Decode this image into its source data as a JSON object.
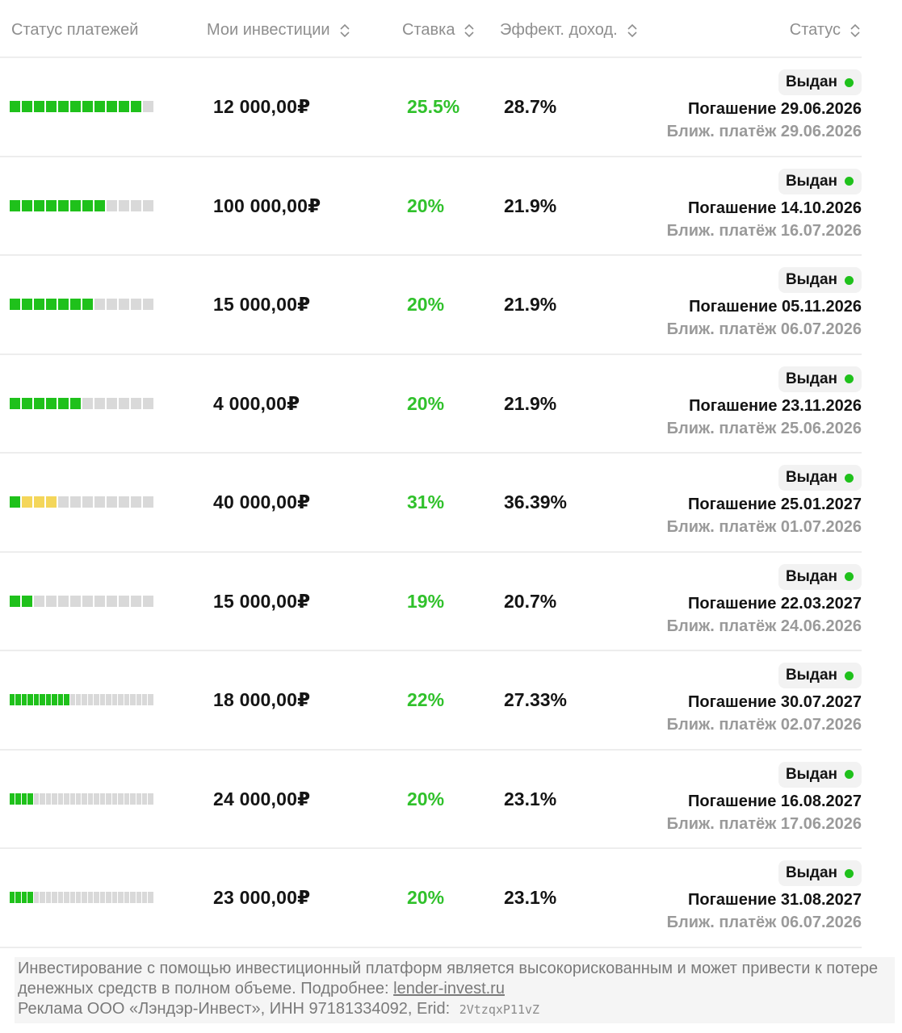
{
  "header": {
    "payment_status": "Статус платежей",
    "my_investments": "Мои инвестиции",
    "rate": "Ставка",
    "effective_yield": "Эффект. доход.",
    "status": "Статус"
  },
  "colors": {
    "progress_paid": "#1fc11b",
    "progress_overdue": "#f4d65a",
    "progress_pending": "#d9d9d9",
    "rate_text": "#30c12b",
    "status_dot": "#1fc11b"
  },
  "rows": [
    {
      "progress": {
        "segments": 12,
        "paid": 11,
        "overdue": 0
      },
      "amount": "12 000,00₽",
      "rate": "25.5%",
      "yield": "28.7%",
      "status": "Выдан",
      "repayment": "Погашение 29.06.2026",
      "next_payment": "Ближ. платёж 29.06.2026"
    },
    {
      "progress": {
        "segments": 12,
        "paid": 8,
        "overdue": 0
      },
      "amount": "100 000,00₽",
      "rate": "20%",
      "yield": "21.9%",
      "status": "Выдан",
      "repayment": "Погашение 14.10.2026",
      "next_payment": "Ближ. платёж 16.07.2026"
    },
    {
      "progress": {
        "segments": 12,
        "paid": 7,
        "overdue": 0
      },
      "amount": "15 000,00₽",
      "rate": "20%",
      "yield": "21.9%",
      "status": "Выдан",
      "repayment": "Погашение 05.11.2026",
      "next_payment": "Ближ. платёж 06.07.2026"
    },
    {
      "progress": {
        "segments": 12,
        "paid": 6,
        "overdue": 0
      },
      "amount": "4 000,00₽",
      "rate": "20%",
      "yield": "21.9%",
      "status": "Выдан",
      "repayment": "Погашение 23.11.2026",
      "next_payment": "Ближ. платёж 25.06.2026"
    },
    {
      "progress": {
        "segments": 12,
        "paid": 1,
        "overdue": 3
      },
      "amount": "40 000,00₽",
      "rate": "31%",
      "yield": "36.39%",
      "status": "Выдан",
      "repayment": "Погашение 25.01.2027",
      "next_payment": "Ближ. платёж 01.07.2026"
    },
    {
      "progress": {
        "segments": 12,
        "paid": 2,
        "overdue": 0
      },
      "amount": "15 000,00₽",
      "rate": "19%",
      "yield": "20.7%",
      "status": "Выдан",
      "repayment": "Погашение 22.03.2027",
      "next_payment": "Ближ. платёж 24.06.2026"
    },
    {
      "progress": {
        "segments": 24,
        "paid": 10,
        "overdue": 0
      },
      "amount": "18 000,00₽",
      "rate": "22%",
      "yield": "27.33%",
      "status": "Выдан",
      "repayment": "Погашение 30.07.2027",
      "next_payment": "Ближ. платёж 02.07.2026"
    },
    {
      "progress": {
        "segments": 24,
        "paid": 4,
        "overdue": 0
      },
      "amount": "24 000,00₽",
      "rate": "20%",
      "yield": "23.1%",
      "status": "Выдан",
      "repayment": "Погашение 16.08.2027",
      "next_payment": "Ближ. платёж 17.06.2026"
    },
    {
      "progress": {
        "segments": 24,
        "paid": 4,
        "overdue": 0
      },
      "amount": "23 000,00₽",
      "rate": "20%",
      "yield": "23.1%",
      "status": "Выдан",
      "repayment": "Погашение 31.08.2027",
      "next_payment": "Ближ. платёж 06.07.2026"
    }
  ],
  "disclaimer": {
    "text": "Инвестирование с помощью инвестиционный платформ является высокорискованным и может привести к потере денежных средств в полном объеме. Подробнее:",
    "link": "lender-invest.ru",
    "ad": "Реклама ООО «Лэндэр-Инвест», ИНН 97181334092, Erid:",
    "erid": "2VtzqxP11vZ"
  }
}
